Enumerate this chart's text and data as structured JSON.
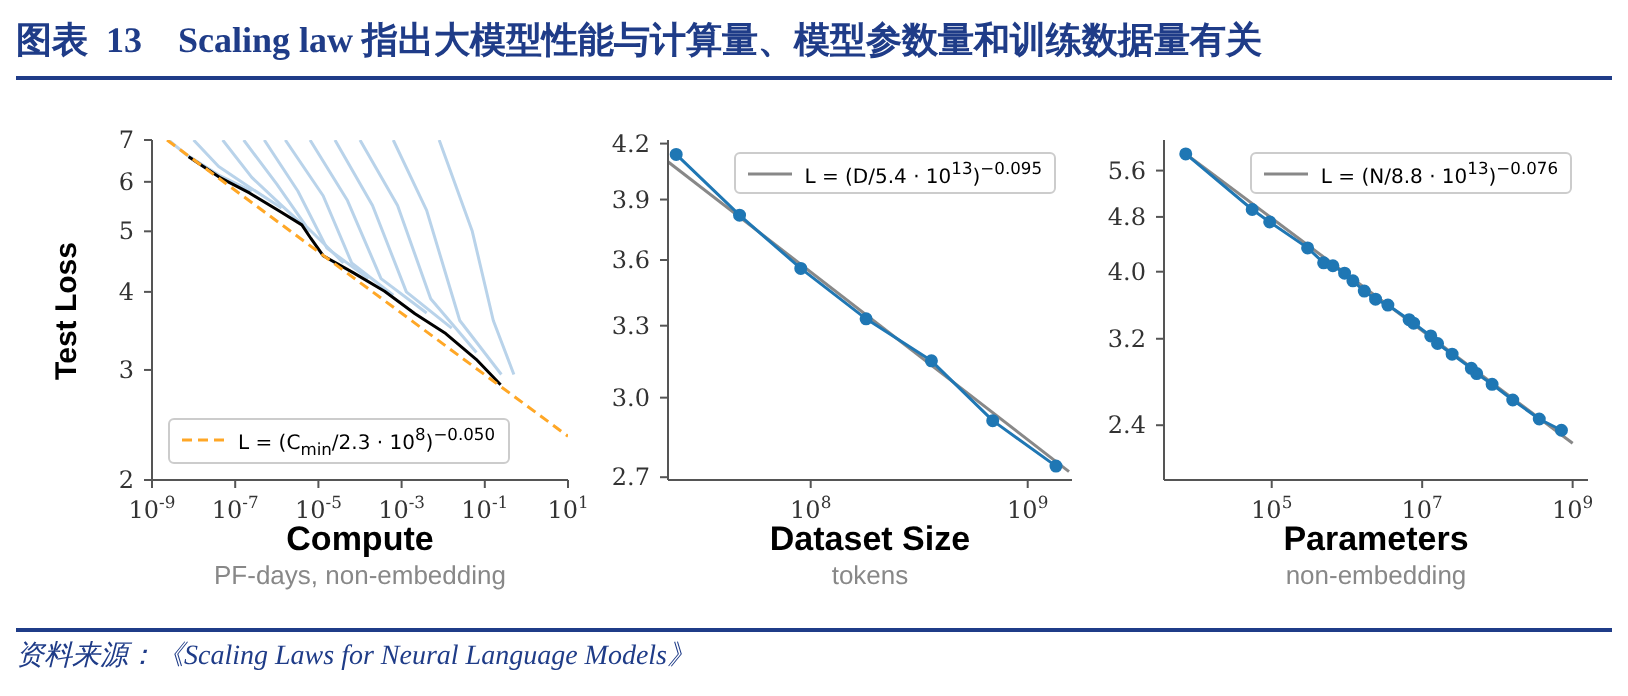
{
  "chart_data": [
    {
      "type": "line",
      "title": "图表  13    Scaling law 指出大模型性能与计算量、模型参数量和训练数据量有关",
      "xlabel": "Compute",
      "ylabel": "Test Loss",
      "annotations": [
        "PF-days, non-embedding",
        "资料来源：《Scaling Laws for Neural Language Models》"
      ],
      "log": "xy",
      "legend": "bottom left",
      "xlim": [
        1e-09,
        10
      ],
      "ylim": [
        2,
        7
      ],
      "xticks": [
        {
          "value": 1e-09,
          "label": "10$^{-9}$"
        },
        {
          "value": 1e-07,
          "label": "10$^{-7}$"
        },
        {
          "value": 1e-05,
          "label": "10$^{-5}$"
        },
        {
          "value": 0.001,
          "label": "10$^{-3}$"
        },
        {
          "value": 0.1,
          "label": "10$^{-1}$"
        },
        {
          "value": 10,
          "label": "10$^{1}$"
        }
      ],
      "yticks": [
        2,
        3,
        4,
        5,
        6,
        7
      ],
      "series": [
        {
          "color": "#b9d3ea",
          "x": [
            2.5e-09,
            6.3e-09,
            4e-08,
            2.5e-07
          ],
          "values": [
            7.0,
            6.65,
            6.15,
            5.8
          ]
        },
        {
          "color": "#b9d3ea",
          "x": [
            1e-08,
            4e-08,
            2.5e-07,
            1.3e-06
          ],
          "values": [
            7.0,
            6.35,
            5.85,
            5.45
          ]
        },
        {
          "color": "#b9d3ea",
          "x": [
            5e-08,
            2.5e-07,
            1.3e-06,
            6.3e-06
          ],
          "values": [
            7.0,
            6.1,
            5.5,
            5.0
          ]
        },
        {
          "color": "#b9d3ea",
          "x": [
            1.6e-07,
            1e-06,
            5e-06,
            4e-05
          ],
          "values": [
            7.0,
            5.95,
            5.1,
            4.45
          ]
        },
        {
          "color": "#b9d3ea",
          "x": [
            5e-07,
            3.2e-06,
            1.6e-05,
            0.00016
          ],
          "values": [
            7.0,
            5.8,
            4.7,
            4.2
          ]
        },
        {
          "color": "#b9d3ea",
          "x": [
            1.6e-06,
            1.3e-05,
            6.3e-05,
            0.00063
          ],
          "values": [
            7.0,
            5.7,
            4.45,
            3.95
          ]
        },
        {
          "color": "#b9d3ea",
          "x": [
            6.3e-06,
            5e-05,
            0.00032,
            0.004
          ],
          "values": [
            7.0,
            5.6,
            4.2,
            3.7
          ]
        },
        {
          "color": "#b9d3ea",
          "x": [
            2.5e-05,
            0.0002,
            0.0013,
            0.016
          ],
          "values": [
            7.0,
            5.5,
            4.0,
            3.5
          ]
        },
        {
          "color": "#b9d3ea",
          "x": [
            0.0001,
            0.0008,
            0.005,
            0.063
          ],
          "values": [
            7.0,
            5.5,
            3.9,
            3.2
          ]
        },
        {
          "color": "#b9d3ea",
          "x": [
            0.00063,
            0.004,
            0.025,
            0.25
          ],
          "values": [
            7.0,
            5.4,
            3.6,
            2.95
          ]
        },
        {
          "color": "#b9d3ea",
          "x": [
            0.008,
            0.05,
            0.16,
            0.5
          ],
          "values": [
            7.0,
            5.0,
            3.6,
            2.95
          ]
        },
        {
          "color": "#000000",
          "x": [
            7.6e-09,
            4.2e-08,
            2.2e-07,
            1.2e-06,
            4e-06,
            6.6e-06,
            1.3e-05,
            7e-05,
            0.00039,
            0.0021,
            0.0115,
            0.062,
            0.24
          ],
          "values": [
            6.58,
            6.1,
            5.76,
            5.38,
            5.12,
            4.87,
            4.57,
            4.29,
            4.01,
            3.69,
            3.43,
            3.12,
            2.84
          ]
        },
        {
          "name": "L = (C$_{min}$/2.3 · 10$^{8}$)$^{−0.050}$",
          "color": "#ffa726",
          "line_style": "dashed",
          "x": [
            2.3e-09,
            10
          ],
          "values": [
            7.0,
            2.35
          ]
        }
      ]
    },
    {
      "type": "line",
      "xlabel": "Dataset Size",
      "annotations": [
        "tokens"
      ],
      "log": "xy",
      "legend": "top right",
      "xlim": [
        22000000.0,
        1600000000.0
      ],
      "ylim": [
        2.69,
        4.22
      ],
      "xticks": [
        {
          "value": 100000000.0,
          "label": "10$^{8}$"
        },
        {
          "value": 1000000000.0,
          "label": "10$^{9}$"
        }
      ],
      "yticks": [
        {
          "value": 2.7,
          "label": "2.7"
        },
        {
          "value": 3,
          "label": "3.0"
        },
        {
          "value": 3.3,
          "label": "3.3"
        },
        {
          "value": 3.6,
          "label": "3.6"
        },
        {
          "value": 3.9,
          "label": "3.9"
        },
        {
          "value": 4.2,
          "label": "4.2"
        }
      ],
      "series": [
        {
          "name": "L = (D/5.4 · 10$^{13}$)$^{−0.095}$",
          "color": "#888888",
          "x": [
            22000000.0,
            1550000000.0
          ],
          "values": [
            4.1,
            2.72
          ]
        },
        {
          "color": "#1f77b4",
          "marker": "circle",
          "x": [
            24000000.0,
            47000000.0,
            90000000.0,
            180000000.0,
            360000000.0,
            690000000.0,
            1350000000.0
          ],
          "values": [
            4.14,
            3.82,
            3.56,
            3.33,
            3.15,
            2.91,
            2.74
          ]
        }
      ]
    },
    {
      "type": "line",
      "xlabel": "Parameters",
      "annotations": [
        "non-embedding"
      ],
      "log": "xy",
      "legend": "top right",
      "xlim": [
        3700.0,
        1600000000.0
      ],
      "ylim": [
        2.0,
        6.2
      ],
      "xticks": [
        {
          "value": 100000.0,
          "label": "10$^{5}$"
        },
        {
          "value": 10000000.0,
          "label": "10$^{7}$"
        },
        {
          "value": 1000000000.0,
          "label": "10$^{9}$"
        }
      ],
      "yticks": [
        2.4,
        3.2,
        {
          "value": 4,
          "label": "4.0"
        },
        4.8,
        5.6
      ],
      "series": [
        {
          "name": "L = (N/8.8 · 10$^{13}$)$^{−0.076}$",
          "color": "#888888",
          "x": [
            7200.0,
            1000000000.0
          ],
          "values": [
            5.92,
            2.26
          ]
        },
        {
          "color": "#1f77b4",
          "marker": "circle",
          "x": [
            7200.0,
            55000.0,
            94000.0,
            300000.0,
            490000.0,
            650000.0,
            930000.0,
            1200000.0,
            1700000.0,
            2400000.0,
            3500000.0,
            6700000.0,
            7700000.0,
            13000000.0,
            16000000.0,
            25000000.0,
            45000000.0,
            53000000.0,
            85000000.0,
            160000000.0,
            360000000.0,
            710000000.0
          ],
          "values": [
            5.92,
            4.92,
            4.72,
            4.33,
            4.12,
            4.08,
            3.98,
            3.88,
            3.75,
            3.65,
            3.58,
            3.41,
            3.37,
            3.23,
            3.15,
            3.04,
            2.9,
            2.85,
            2.75,
            2.61,
            2.45,
            2.36
          ]
        }
      ]
    }
  ]
}
